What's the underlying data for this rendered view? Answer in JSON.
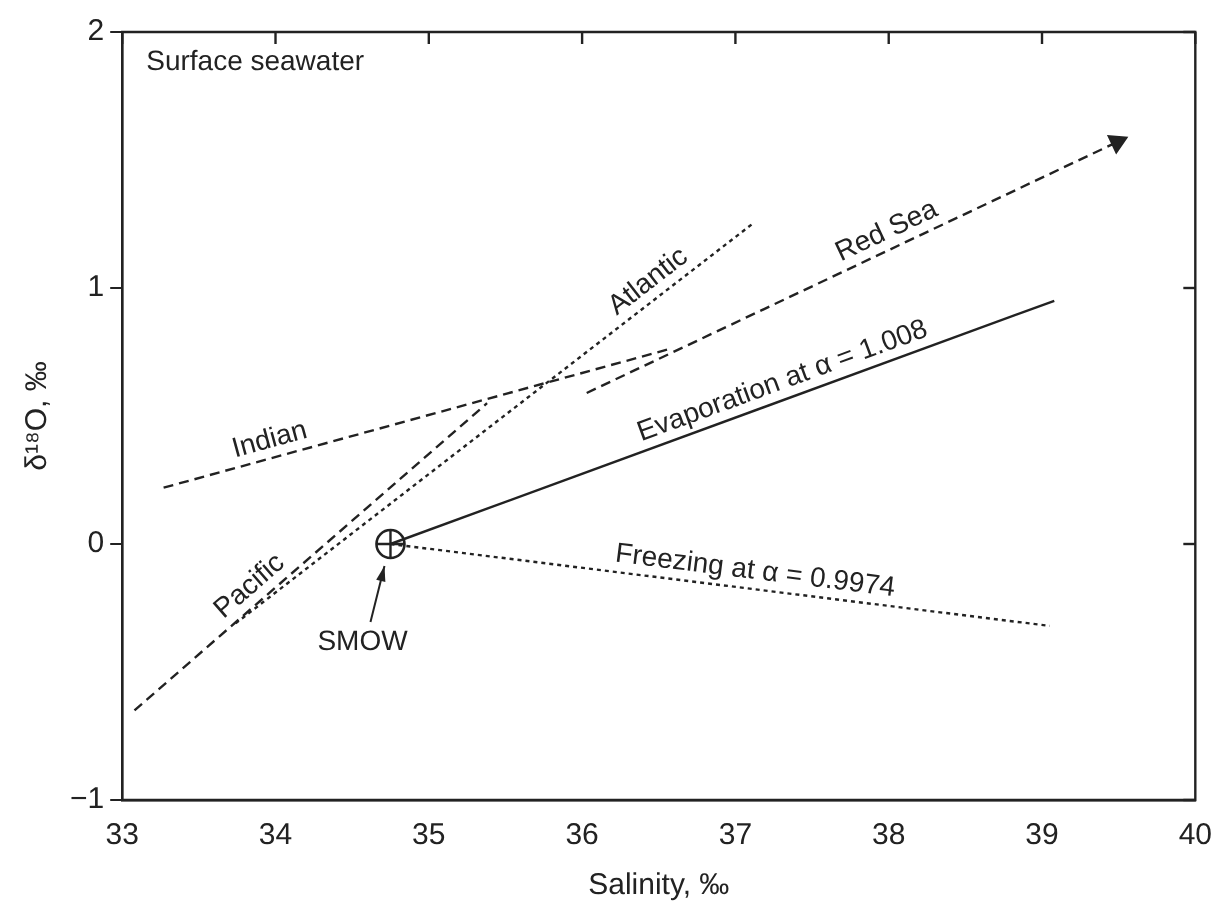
{
  "chart_data": {
    "type": "line",
    "xlabel": "Salinity, ‰",
    "ylabel": "δ¹⁸O, ‰",
    "xlim": [
      33,
      40
    ],
    "xticks": [
      33,
      34,
      35,
      36,
      37,
      38,
      39,
      40
    ],
    "ylim": [
      -1,
      2
    ],
    "yticks": [
      -1,
      0,
      1,
      2
    ],
    "grid": false,
    "legend": false,
    "series": [
      {
        "name": "Indian",
        "color": "#222222",
        "line_style": "dashed",
        "x": [
          33.27,
          36.56
        ],
        "values": [
          0.22,
          0.76
        ]
      },
      {
        "name": "Pacific",
        "color": "#222222",
        "line_style": "dashed",
        "x": [
          33.08,
          35.38
        ],
        "values": [
          -0.65,
          0.55
        ]
      },
      {
        "name": "Atlantic",
        "color": "#222222",
        "line_style": "dotted",
        "x": [
          33.74,
          37.11
        ],
        "values": [
          -0.31,
          1.25
        ]
      },
      {
        "name": "Red Sea",
        "color": "#222222",
        "line_style": "dashed",
        "marker": "triangle",
        "x": [
          36.03,
          39.49
        ],
        "values": [
          0.59,
          1.57
        ]
      },
      {
        "name": "Evaporation at α = 1.008",
        "color": "#222222",
        "line_style": "solid",
        "x": [
          34.75,
          39.08
        ],
        "values": [
          0,
          0.95
        ]
      },
      {
        "name": "Freezing at α = 0.9974",
        "color": "#222222",
        "line_style": "dotted",
        "x": [
          34.75,
          39.05
        ],
        "values": [
          0,
          -0.32
        ]
      },
      {
        "type": "scatter",
        "marker": "circle",
        "color": "#222222",
        "x": [
          34.75
        ],
        "values": [
          0
        ]
      }
    ],
    "annotations": [
      "Surface seawater",
      {
        "text": "SMOW",
        "x": 34.75,
        "y": 0
      }
    ]
  }
}
